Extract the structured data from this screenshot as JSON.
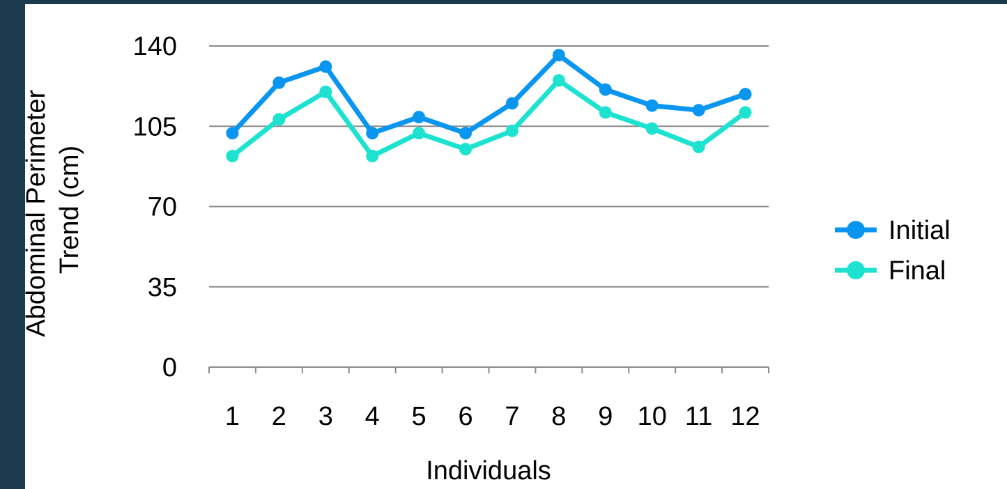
{
  "chart_data": {
    "type": "line",
    "title": "",
    "xlabel": "Individuals",
    "ylabel_lines": [
      "Abdominal Perimeter",
      "Trend (cm)"
    ],
    "categories": [
      "1",
      "2",
      "3",
      "4",
      "5",
      "6",
      "7",
      "8",
      "9",
      "10",
      "11",
      "12"
    ],
    "ylim": [
      0,
      140
    ],
    "yticks": [
      0,
      35,
      70,
      105,
      140
    ],
    "grid": true,
    "legend_position": "right",
    "series": [
      {
        "name": "Initial",
        "color": "#0a96f0",
        "values": [
          102,
          124,
          131,
          102,
          109,
          102,
          115,
          136,
          121,
          114,
          112,
          119
        ]
      },
      {
        "name": "Final",
        "color": "#1de2d0",
        "values": [
          92,
          108,
          120,
          92,
          102,
          95,
          103,
          125,
          111,
          104,
          96,
          111
        ]
      }
    ]
  }
}
